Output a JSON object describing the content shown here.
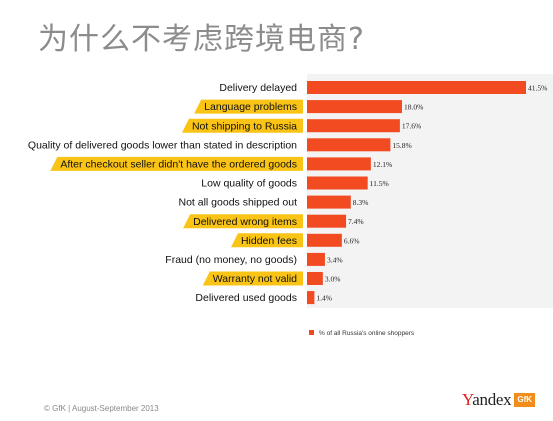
{
  "title": "为什么不考虑跨境电商?",
  "footer": "© GfK | August-September 2013",
  "logo": {
    "y": "Y",
    "rest": "andex",
    "badge": "GfK"
  },
  "colors": {
    "bar": "#f24a21",
    "highlight": "#fac416",
    "title": "#8c8c8c"
  },
  "chart_data": {
    "type": "bar",
    "orientation": "horizontal",
    "categories": [
      "Delivery delayed",
      "Language problems",
      "Not shipping to Russia",
      "Quality of delivered goods lower than stated in description",
      "After checkout seller didn't have the ordered goods",
      "Low quality of goods",
      "Not all goods shipped out",
      "Delivered wrong items",
      "Hidden fees",
      "Fraud (no money, no goods)",
      "Warranty not valid",
      "Delivered used goods"
    ],
    "values": [
      41.5,
      18.0,
      17.6,
      15.8,
      12.1,
      11.5,
      8.3,
      7.4,
      6.6,
      3.4,
      3.0,
      1.4
    ],
    "value_labels": [
      "41.5%",
      "18.0%",
      "17.6%",
      "15.8%",
      "12.1%",
      "11.5%",
      "8.3%",
      "7.4%",
      "6.6%",
      "3.4%",
      "3.0%",
      "1.4%"
    ],
    "highlighted": [
      false,
      true,
      true,
      false,
      true,
      false,
      false,
      true,
      true,
      false,
      true,
      false
    ],
    "legend": "% of all Russia's online shoppers",
    "legend_position": "bottom-right",
    "xlim": [
      0,
      41.5
    ],
    "grid": false
  }
}
